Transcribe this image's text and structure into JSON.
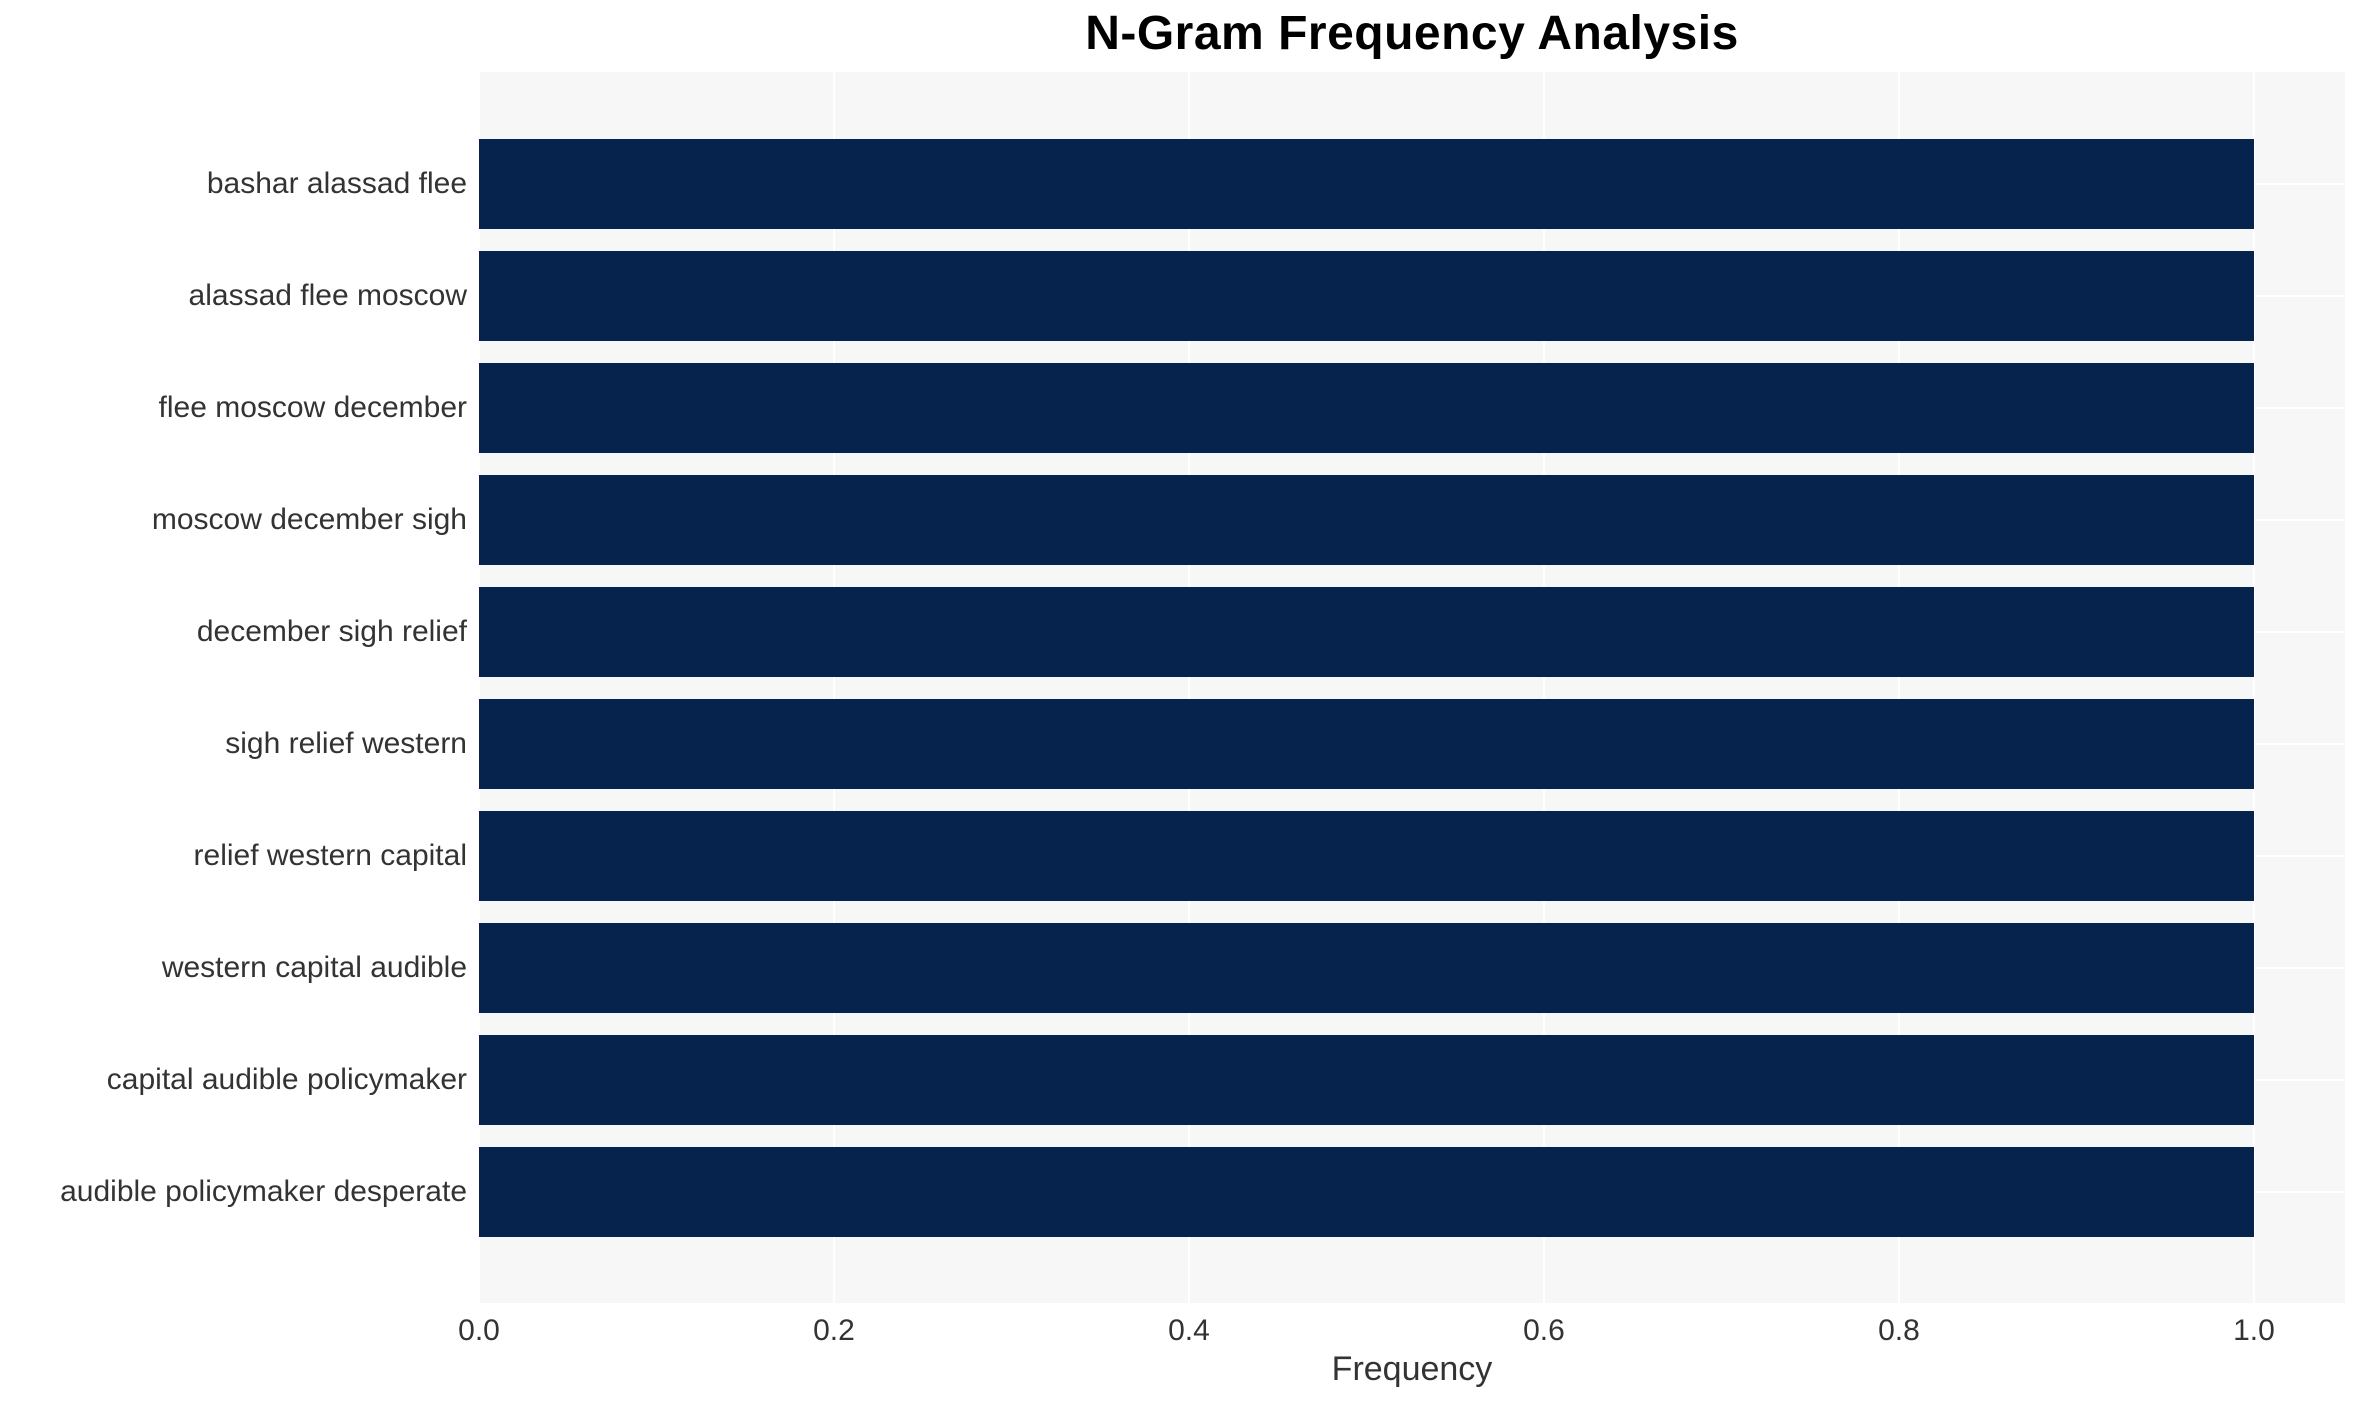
{
  "chart_data": {
    "type": "bar",
    "orientation": "horizontal",
    "title": "N-Gram Frequency Analysis",
    "xlabel": "Frequency",
    "ylabel": "",
    "categories": [
      "bashar alassad flee",
      "alassad flee moscow",
      "flee moscow december",
      "moscow december sigh",
      "december sigh relief",
      "sigh relief western",
      "relief western capital",
      "western capital audible",
      "capital audible policymaker",
      "audible policymaker desperate"
    ],
    "values": [
      1.0,
      1.0,
      1.0,
      1.0,
      1.0,
      1.0,
      1.0,
      1.0,
      1.0,
      1.0
    ],
    "x_ticks": [
      0.0,
      0.2,
      0.4,
      0.6,
      0.8,
      1.0
    ],
    "x_tick_labels": [
      "0.0",
      "0.2",
      "0.4",
      "0.6",
      "0.8",
      "1.0"
    ],
    "xlim": [
      0,
      1.0513
    ],
    "grid": "on",
    "legend": "none",
    "colors": {
      "bar": "#06234e",
      "plot_bg": "#f7f7f7",
      "grid": "#ffffff",
      "title": "#000000",
      "text": "#333333",
      "figure_bg": "#ffffff"
    }
  }
}
